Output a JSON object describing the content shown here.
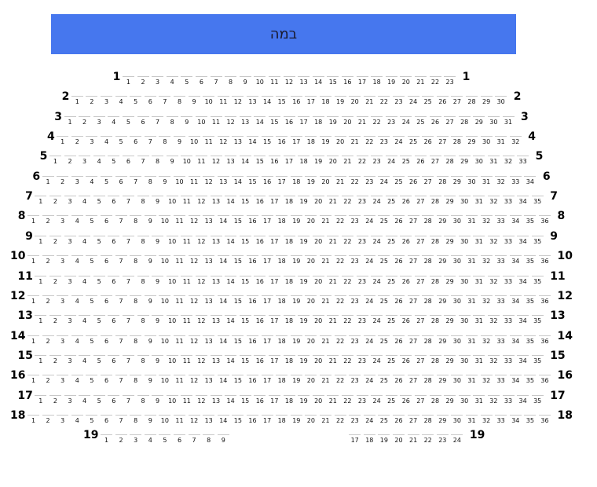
{
  "stage": {
    "label": "במה",
    "color": "#4677ee"
  },
  "rows": [
    {
      "row": "1",
      "seats": [
        1,
        2,
        3,
        4,
        5,
        6,
        7,
        8,
        9,
        10,
        11,
        12,
        13,
        14,
        15,
        16,
        17,
        18,
        19,
        20,
        21,
        22,
        23
      ]
    },
    {
      "row": "2",
      "seats": [
        1,
        2,
        3,
        4,
        5,
        6,
        7,
        8,
        9,
        10,
        11,
        12,
        13,
        14,
        15,
        16,
        17,
        18,
        19,
        20,
        21,
        22,
        23,
        24,
        25,
        26,
        27,
        28,
        29,
        30
      ]
    },
    {
      "row": "3",
      "seats": [
        1,
        2,
        3,
        4,
        5,
        6,
        7,
        8,
        9,
        10,
        11,
        12,
        13,
        14,
        15,
        16,
        17,
        18,
        19,
        20,
        21,
        22,
        23,
        24,
        25,
        26,
        27,
        28,
        29,
        30,
        31
      ]
    },
    {
      "row": "4",
      "seats": [
        1,
        2,
        3,
        4,
        5,
        6,
        7,
        8,
        9,
        10,
        11,
        12,
        13,
        14,
        15,
        16,
        17,
        18,
        19,
        20,
        21,
        22,
        23,
        24,
        25,
        26,
        27,
        28,
        29,
        30,
        31,
        32
      ]
    },
    {
      "row": "5",
      "seats": [
        1,
        2,
        3,
        4,
        5,
        6,
        7,
        8,
        9,
        10,
        11,
        12,
        13,
        14,
        15,
        16,
        17,
        18,
        19,
        20,
        21,
        22,
        23,
        24,
        25,
        26,
        27,
        28,
        29,
        30,
        31,
        32,
        33
      ]
    },
    {
      "row": "6",
      "seats": [
        1,
        2,
        3,
        4,
        5,
        6,
        7,
        8,
        9,
        10,
        11,
        12,
        13,
        14,
        15,
        16,
        17,
        18,
        19,
        20,
        21,
        22,
        23,
        24,
        25,
        26,
        27,
        28,
        29,
        30,
        31,
        32,
        33,
        34
      ]
    },
    {
      "row": "7",
      "seats": [
        1,
        2,
        3,
        4,
        5,
        6,
        7,
        8,
        9,
        10,
        11,
        12,
        13,
        14,
        15,
        16,
        17,
        18,
        19,
        20,
        21,
        22,
        23,
        24,
        25,
        26,
        27,
        28,
        29,
        30,
        31,
        32,
        33,
        34,
        35
      ]
    },
    {
      "row": "8",
      "seats": [
        1,
        2,
        3,
        4,
        5,
        6,
        7,
        8,
        9,
        10,
        11,
        12,
        13,
        14,
        15,
        16,
        17,
        18,
        19,
        20,
        21,
        22,
        23,
        24,
        25,
        26,
        27,
        28,
        29,
        30,
        31,
        32,
        33,
        34,
        35,
        36
      ]
    },
    {
      "row": "9",
      "seats": [
        1,
        2,
        3,
        4,
        5,
        6,
        7,
        8,
        9,
        10,
        11,
        12,
        13,
        14,
        15,
        16,
        17,
        18,
        19,
        20,
        21,
        22,
        23,
        24,
        25,
        26,
        27,
        28,
        29,
        30,
        31,
        32,
        33,
        34,
        35
      ]
    },
    {
      "row": "10",
      "seats": [
        1,
        2,
        3,
        4,
        5,
        6,
        7,
        8,
        9,
        10,
        11,
        12,
        13,
        14,
        15,
        16,
        17,
        18,
        19,
        20,
        21,
        22,
        23,
        24,
        25,
        26,
        27,
        28,
        29,
        30,
        31,
        32,
        33,
        34,
        35,
        36
      ]
    },
    {
      "row": "11",
      "seats": [
        1,
        2,
        3,
        4,
        5,
        6,
        7,
        8,
        9,
        10,
        11,
        12,
        13,
        14,
        15,
        16,
        17,
        18,
        19,
        20,
        21,
        22,
        23,
        24,
        25,
        26,
        27,
        28,
        29,
        30,
        31,
        32,
        33,
        34,
        35
      ]
    },
    {
      "row": "12",
      "seats": [
        1,
        2,
        3,
        4,
        5,
        6,
        7,
        8,
        9,
        10,
        11,
        12,
        13,
        14,
        15,
        16,
        17,
        18,
        19,
        20,
        21,
        22,
        23,
        24,
        25,
        26,
        27,
        28,
        29,
        30,
        31,
        32,
        33,
        34,
        35,
        36
      ]
    },
    {
      "row": "13",
      "seats": [
        1,
        2,
        3,
        4,
        5,
        6,
        7,
        8,
        9,
        10,
        11,
        12,
        13,
        14,
        15,
        16,
        17,
        18,
        19,
        20,
        21,
        22,
        23,
        24,
        25,
        26,
        27,
        28,
        29,
        30,
        31,
        32,
        33,
        34,
        35
      ]
    },
    {
      "row": "14",
      "seats": [
        1,
        2,
        3,
        4,
        5,
        6,
        7,
        8,
        9,
        10,
        11,
        12,
        13,
        14,
        15,
        16,
        17,
        18,
        19,
        20,
        21,
        22,
        23,
        24,
        25,
        26,
        27,
        28,
        29,
        30,
        31,
        32,
        33,
        34,
        35,
        36
      ]
    },
    {
      "row": "15",
      "seats": [
        1,
        2,
        3,
        4,
        5,
        6,
        7,
        8,
        9,
        10,
        11,
        12,
        13,
        14,
        15,
        16,
        17,
        18,
        19,
        20,
        21,
        22,
        23,
        24,
        25,
        26,
        27,
        28,
        29,
        30,
        31,
        32,
        33,
        34,
        35
      ]
    },
    {
      "row": "16",
      "seats": [
        1,
        2,
        3,
        4,
        5,
        6,
        7,
        8,
        9,
        10,
        11,
        12,
        13,
        14,
        15,
        16,
        17,
        18,
        19,
        20,
        21,
        22,
        23,
        24,
        25,
        26,
        27,
        28,
        29,
        30,
        31,
        32,
        33,
        34,
        35,
        36
      ]
    },
    {
      "row": "17",
      "seats": [
        1,
        2,
        3,
        4,
        5,
        6,
        7,
        8,
        9,
        10,
        11,
        12,
        13,
        14,
        15,
        16,
        17,
        18,
        19,
        20,
        21,
        22,
        23,
        24,
        25,
        26,
        27,
        28,
        29,
        30,
        31,
        32,
        33,
        34,
        35
      ]
    },
    {
      "row": "18",
      "seats": [
        1,
        2,
        3,
        4,
        5,
        6,
        7,
        8,
        9,
        10,
        11,
        12,
        13,
        14,
        15,
        16,
        17,
        18,
        19,
        20,
        21,
        22,
        23,
        24,
        25,
        26,
        27,
        28,
        29,
        30,
        31,
        32,
        33,
        34,
        35,
        36
      ]
    },
    {
      "row": "19",
      "seats": [
        1,
        2,
        3,
        4,
        5,
        6,
        7,
        8,
        9,
        17,
        18,
        19,
        20,
        21,
        22,
        23,
        24
      ]
    }
  ]
}
